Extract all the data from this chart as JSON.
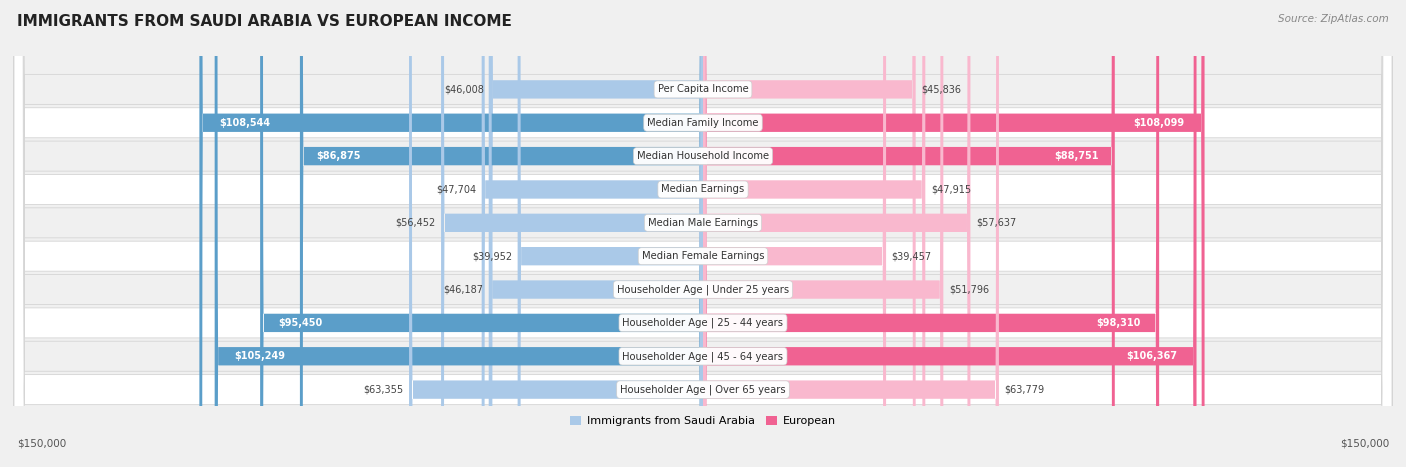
{
  "title": "IMMIGRANTS FROM SAUDI ARABIA VS EUROPEAN INCOME",
  "source": "Source: ZipAtlas.com",
  "categories": [
    "Per Capita Income",
    "Median Family Income",
    "Median Household Income",
    "Median Earnings",
    "Median Male Earnings",
    "Median Female Earnings",
    "Householder Age | Under 25 years",
    "Householder Age | 25 - 44 years",
    "Householder Age | 45 - 64 years",
    "Householder Age | Over 65 years"
  ],
  "saudi_values": [
    46008,
    108544,
    86875,
    47704,
    56452,
    39952,
    46187,
    95450,
    105249,
    63355
  ],
  "european_values": [
    45836,
    108099,
    88751,
    47915,
    57637,
    39457,
    51796,
    98310,
    106367,
    63779
  ],
  "saudi_labels": [
    "$46,008",
    "$108,544",
    "$86,875",
    "$47,704",
    "$56,452",
    "$39,952",
    "$46,187",
    "$95,450",
    "$105,249",
    "$63,355"
  ],
  "european_labels": [
    "$45,836",
    "$108,099",
    "$88,751",
    "$47,915",
    "$57,637",
    "$39,457",
    "$51,796",
    "$98,310",
    "$106,367",
    "$63,779"
  ],
  "saudi_color_light": "#aac9e8",
  "saudi_color_dark": "#5b9ec9",
  "european_color_light": "#f9b8ce",
  "european_color_dark": "#f06292",
  "max_value": 150000,
  "legend_saudi": "Immigrants from Saudi Arabia",
  "legend_european": "European",
  "axis_label_left": "$150,000",
  "axis_label_right": "$150,000",
  "inside_label_threshold": 70000,
  "row_colors": [
    "#f0f0f0",
    "#ffffff",
    "#f0f0f0",
    "#ffffff",
    "#f0f0f0",
    "#ffffff",
    "#f0f0f0",
    "#ffffff",
    "#f0f0f0",
    "#ffffff"
  ],
  "fig_bg": "#f0f0f0"
}
